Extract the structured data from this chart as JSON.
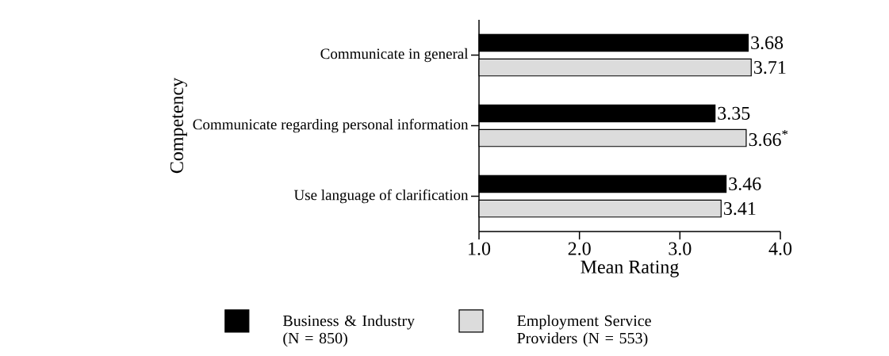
{
  "chart_data": {
    "type": "bar",
    "orientation": "horizontal",
    "xlabel": "Mean Rating",
    "ylabel": "Competency",
    "categories": [
      "Communicate in general",
      "Communicate regarding personal information",
      "Use language of clarification"
    ],
    "series": [
      {
        "name": "Business & Industry (N = 850)",
        "color": "#000000",
        "values": [
          3.68,
          3.35,
          3.46
        ],
        "value_labels": [
          "3.68",
          "3.35",
          "3.46"
        ]
      },
      {
        "name": "Employment Service Providers (N = 553)",
        "color": "#dcdcdc",
        "values": [
          3.71,
          3.66,
          3.41
        ],
        "value_labels": [
          "3.71",
          "3.66$^{*}$",
          "3.41"
        ]
      }
    ],
    "xlim": [
      1,
      4
    ],
    "xticks": [
      {
        "value": 1,
        "label": "1.0"
      },
      {
        "value": 2,
        "label": "2.0"
      },
      {
        "value": 3,
        "label": "3.0"
      },
      {
        "value": 4,
        "label": "4.0"
      }
    ],
    "grid": false,
    "legend": "bottom"
  }
}
